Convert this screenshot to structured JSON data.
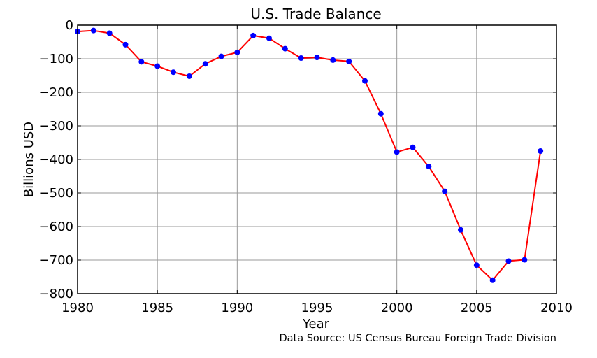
{
  "chart_data": {
    "type": "line",
    "title": "U.S. Trade Balance",
    "xlabel": "Year",
    "ylabel": "Billions USD",
    "source_note": "Data Source: US Census Bureau Foreign Trade Division",
    "xlim": [
      1980,
      2010
    ],
    "ylim": [
      -800,
      0
    ],
    "x_ticks": [
      1980,
      1985,
      1990,
      1995,
      2000,
      2005,
      2010
    ],
    "y_ticks": [
      0,
      -100,
      -200,
      -300,
      -400,
      -500,
      -600,
      -700,
      -800
    ],
    "x_tick_labels": [
      "1980",
      "1985",
      "1990",
      "1995",
      "2000",
      "2005",
      "2010"
    ],
    "y_tick_labels": [
      "0",
      "−100",
      "−200",
      "−300",
      "−400",
      "−500",
      "−600",
      "−700",
      "−800"
    ],
    "grid": true,
    "series": [
      {
        "line_color": "#ff0000",
        "marker_color": "#0000ff",
        "x": [
          1980,
          1981,
          1982,
          1983,
          1984,
          1985,
          1986,
          1987,
          1988,
          1989,
          1990,
          1991,
          1992,
          1993,
          1994,
          1995,
          1996,
          1997,
          1998,
          1999,
          2000,
          2001,
          2002,
          2003,
          2004,
          2005,
          2006,
          2007,
          2008,
          2009
        ],
        "values": [
          -19,
          -16,
          -24,
          -58,
          -109,
          -122,
          -140,
          -152,
          -115,
          -93,
          -81,
          -31,
          -39,
          -70,
          -98,
          -96,
          -104,
          -108,
          -166,
          -264,
          -378,
          -364,
          -421,
          -495,
          -610,
          -715,
          -760,
          -703,
          -699,
          -375
        ]
      }
    ]
  }
}
